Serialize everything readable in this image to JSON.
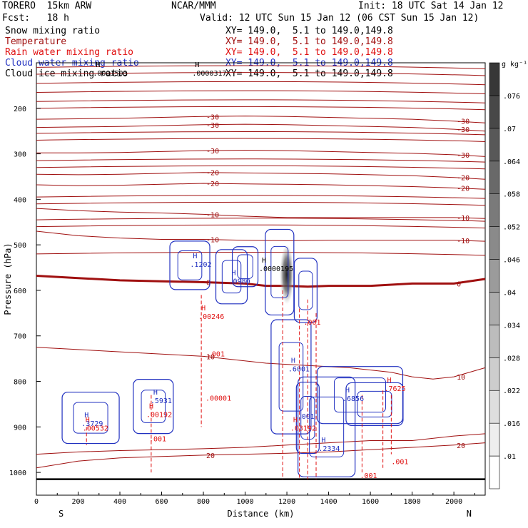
{
  "header": {
    "model": "TORERO  15km ARW",
    "org": "NCAR/MMM",
    "init": "Init: 18 UTC Sat 14 Jan 12",
    "fcst": "Fcst:   18 h",
    "valid": "Valid: 12 UTC Sun 15 Jan 12 (06 CST Sun 15 Jan 12)",
    "fields": [
      {
        "name": "Snow mixing ratio",
        "xy": "XY= 149.0,  5.1 to 149.0,149.8",
        "color": "#000000"
      },
      {
        "name": "Temperature",
        "xy": "XY= 149.0,  5.1 to 149.0,149.8",
        "color": "#a01010"
      },
      {
        "name": "Rain water mixing ratio",
        "xy": "XY= 149.0,  5.1 to 149.0,149.8",
        "color": "#e01010"
      },
      {
        "name": "Cloud water mixing ratio",
        "xy": "XY= 149.0,  5.1 to 149.0,149.8",
        "color": "#2030c0"
      },
      {
        "name": "Cloud ice mixing ratio",
        "xy": "XY= 149.0,  5.1 to 149.0,149.8",
        "color": "#000000"
      }
    ]
  },
  "chart_data": {
    "type": "contour",
    "xlabel": "Distance (km)",
    "ylabel": "Pressure (hPa)",
    "xlim": [
      0,
      2150
    ],
    "ylim": [
      1050,
      100
    ],
    "x_ticks": [
      0,
      200,
      400,
      600,
      800,
      1000,
      1200,
      1400,
      1600,
      1800,
      2000
    ],
    "y_ticks": [
      200,
      300,
      400,
      500,
      600,
      700,
      800,
      900,
      1000
    ],
    "left_end_label": "S",
    "right_end_label": "N",
    "colorbar": {
      "unit": "g kg⁻¹",
      "labels": [
        ".01",
        ".016",
        ".022",
        ".028",
        ".034",
        ".04",
        ".046",
        ".052",
        ".058",
        ".064",
        ".07",
        ".076"
      ]
    },
    "temperature_contours": [
      {
        "label": "-30",
        "points": [
          [
            0,
            224
          ],
          [
            200,
            223
          ],
          [
            400,
            222
          ],
          [
            600,
            220
          ],
          [
            800,
            218
          ],
          [
            1000,
            217
          ],
          [
            1200,
            218
          ],
          [
            1400,
            220
          ],
          [
            1600,
            222
          ],
          [
            1800,
            224
          ],
          [
            2000,
            228
          ],
          [
            2150,
            232
          ]
        ]
      },
      {
        "label": "-30",
        "points": [
          [
            0,
            242
          ],
          [
            200,
            241
          ],
          [
            400,
            240
          ],
          [
            600,
            238
          ],
          [
            800,
            236
          ],
          [
            1000,
            235
          ],
          [
            1200,
            236
          ],
          [
            1400,
            238
          ],
          [
            1600,
            240
          ],
          [
            1800,
            242
          ],
          [
            2000,
            246
          ],
          [
            2150,
            250
          ]
        ]
      },
      {
        "label": "-30",
        "points": [
          [
            0,
            298
          ],
          [
            200,
            298
          ],
          [
            400,
            297
          ],
          [
            600,
            295
          ],
          [
            800,
            293
          ],
          [
            1000,
            292
          ],
          [
            1200,
            293
          ],
          [
            1400,
            295
          ],
          [
            1600,
            297
          ],
          [
            1800,
            299
          ],
          [
            2000,
            302
          ],
          [
            2150,
            306
          ]
        ]
      },
      {
        "label": "-20",
        "points": [
          [
            0,
            345
          ],
          [
            200,
            346
          ],
          [
            400,
            345
          ],
          [
            600,
            343
          ],
          [
            800,
            341
          ],
          [
            1000,
            342
          ],
          [
            1200,
            343
          ],
          [
            1400,
            344
          ],
          [
            1600,
            346
          ],
          [
            1800,
            348
          ],
          [
            2000,
            352
          ],
          [
            2150,
            356
          ]
        ]
      },
      {
        "label": "-20",
        "points": [
          [
            0,
            368
          ],
          [
            200,
            370
          ],
          [
            400,
            369
          ],
          [
            600,
            367
          ],
          [
            800,
            365
          ],
          [
            1000,
            366
          ],
          [
            1200,
            367
          ],
          [
            1400,
            368
          ],
          [
            1600,
            370
          ],
          [
            1800,
            372
          ],
          [
            2000,
            375
          ],
          [
            2150,
            378
          ]
        ]
      },
      {
        "label": "-10",
        "points": [
          [
            0,
            420
          ],
          [
            200,
            425
          ],
          [
            400,
            428
          ],
          [
            600,
            430
          ],
          [
            800,
            433
          ],
          [
            1000,
            437
          ],
          [
            1200,
            440
          ],
          [
            1400,
            440
          ],
          [
            1600,
            440
          ],
          [
            1800,
            440
          ],
          [
            2000,
            440
          ],
          [
            2150,
            442
          ]
        ]
      },
      {
        "label": "-10",
        "points": [
          [
            0,
            470
          ],
          [
            200,
            480
          ],
          [
            400,
            485
          ],
          [
            600,
            488
          ],
          [
            800,
            488
          ],
          [
            1000,
            490
          ],
          [
            1200,
            491
          ],
          [
            1400,
            490
          ],
          [
            1600,
            490
          ],
          [
            1800,
            490
          ],
          [
            2000,
            490
          ],
          [
            2150,
            492
          ]
        ]
      },
      {
        "label": "0",
        "bold": true,
        "points": [
          [
            0,
            568
          ],
          [
            200,
            573
          ],
          [
            400,
            578
          ],
          [
            600,
            580
          ],
          [
            800,
            582
          ],
          [
            1000,
            585
          ],
          [
            1100,
            590
          ],
          [
            1200,
            590
          ],
          [
            1300,
            592
          ],
          [
            1400,
            590
          ],
          [
            1600,
            590
          ],
          [
            1800,
            585
          ],
          [
            2000,
            585
          ],
          [
            2150,
            575
          ]
        ]
      },
      {
        "label": "10",
        "points": [
          [
            0,
            725
          ],
          [
            200,
            730
          ],
          [
            400,
            735
          ],
          [
            600,
            740
          ],
          [
            800,
            745
          ],
          [
            900,
            750
          ],
          [
            1100,
            760
          ],
          [
            1300,
            765
          ],
          [
            1500,
            770
          ],
          [
            1700,
            780
          ],
          [
            1800,
            790
          ],
          [
            1900,
            795
          ],
          [
            2000,
            790
          ],
          [
            2150,
            770
          ]
        ]
      },
      {
        "label": "20",
        "points": [
          [
            0,
            990
          ],
          [
            200,
            975
          ],
          [
            400,
            968
          ],
          [
            600,
            965
          ],
          [
            800,
            962
          ],
          [
            1000,
            960
          ],
          [
            1200,
            958
          ],
          [
            1400,
            955
          ],
          [
            1600,
            950
          ],
          [
            1800,
            945
          ],
          [
            2000,
            940
          ],
          [
            2150,
            935
          ]
        ]
      },
      {
        "points": [
          [
            0,
            960
          ],
          [
            200,
            955
          ],
          [
            400,
            952
          ],
          [
            600,
            950
          ],
          [
            800,
            948
          ],
          [
            1000,
            945
          ],
          [
            1200,
            940
          ],
          [
            1400,
            935
          ],
          [
            1600,
            930
          ],
          [
            1800,
            930
          ],
          [
            2000,
            920
          ],
          [
            2150,
            915
          ]
        ]
      }
    ],
    "upper_isotherms": [
      110,
      125,
      145,
      165,
      185,
      200,
      255,
      270,
      315,
      330,
      395,
      410,
      445,
      460,
      520
    ],
    "markers": [
      {
        "letter": "H",
        "value": ".1202",
        "x": 750,
        "p": 545,
        "color": "#2030c0"
      },
      {
        "letter": "H",
        "value": ".0980",
        "x": 935,
        "p": 582,
        "color": "#2030c0"
      },
      {
        "letter": "H",
        "value": ".0000195",
        "x": 1080,
        "p": 555,
        "color": "#000000"
      },
      {
        "letter": "H",
        "value": ".0000317",
        "x": 760,
        "p": 125,
        "color": "#000000"
      },
      {
        "letter": "H",
        "value": ".0001503",
        "x": 285,
        "p": 125,
        "color": "#000000"
      },
      {
        "letter": "H",
        "value": ".00246",
        "x": 790,
        "p": 660,
        "color": "#e01010"
      },
      {
        "letter": "H",
        "value": ".6001",
        "x": 1220,
        "p": 775,
        "color": "#2030c0"
      },
      {
        "letter": "H",
        "value": ".5931",
        "x": 560,
        "p": 845,
        "color": "#2030c0"
      },
      {
        "letter": "H",
        "value": ".00192",
        "x": 540,
        "p": 875,
        "color": "#e01010"
      },
      {
        "letter": "H",
        "value": ".3729",
        "x": 230,
        "p": 895,
        "color": "#2030c0"
      },
      {
        "letter": "H",
        "value": ".00532",
        "x": 235,
        "p": 905,
        "color": "#e01010"
      },
      {
        "letter": "H",
        "value": ".03192",
        "x": 1230,
        "p": 905,
        "color": "#e01010"
      },
      {
        "letter": "H",
        "value": ".2334",
        "x": 1365,
        "p": 950,
        "color": "#2030c0"
      },
      {
        "letter": "H",
        "value": ".6856",
        "x": 1480,
        "p": 840,
        "color": "#2030c0"
      },
      {
        "letter": "H",
        "value": ".7625",
        "x": 1680,
        "p": 818,
        "color": "#e01010"
      }
    ],
    "value_labels": [
      {
        "text": ".001",
        "x": 820,
        "p": 745,
        "color": "#e01010"
      },
      {
        "text": ".00001",
        "x": 810,
        "p": 842,
        "color": "#e01010"
      },
      {
        "text": ".001",
        "x": 1280,
        "p": 675,
        "color": "#e01010"
      },
      {
        "text": ".001",
        "x": 1250,
        "p": 882,
        "color": "#2030c0"
      },
      {
        "text": ".001",
        "x": 1700,
        "p": 982,
        "color": "#e01010"
      },
      {
        "text": ".001",
        "x": 540,
        "p": 932,
        "color": "#e01010"
      },
      {
        "text": ".001",
        "x": 1550,
        "p": 1012,
        "color": "#e01010"
      }
    ]
  }
}
